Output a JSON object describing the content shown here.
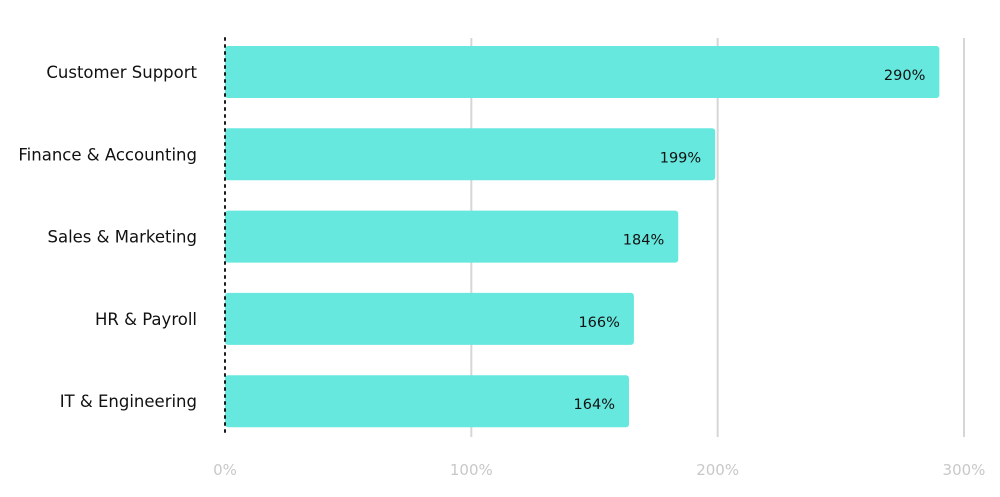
{
  "chart_data": {
    "type": "bar",
    "orientation": "horizontal",
    "categories": [
      "Customer Support",
      "Finance & Accounting",
      "Sales & Marketing",
      "HR & Payroll",
      "IT & Engineering"
    ],
    "values": [
      290,
      199,
      184,
      166,
      164
    ],
    "value_labels": [
      "290%",
      "199%",
      "184%",
      "166%",
      "164%"
    ],
    "x_ticks": [
      0,
      100,
      200,
      300
    ],
    "x_tick_labels": [
      "0%",
      "100%",
      "200%",
      "300%"
    ],
    "xlim": [
      0,
      300
    ],
    "title": "",
    "xlabel": "",
    "ylabel": "",
    "grid": "vertical",
    "legend": "none",
    "colors": {
      "bar": "#66E8DE",
      "grid": "#D6D6D6",
      "baseline": "#1A1A1A",
      "tick_text": "#C8C8C8",
      "label_text": "#111111"
    }
  }
}
